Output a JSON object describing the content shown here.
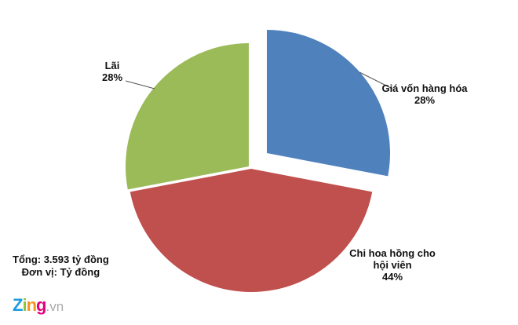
{
  "chart_data": {
    "type": "pie",
    "slices": [
      {
        "label": "Giá vốn hàng hóa",
        "percent_label": "28%",
        "value": 28,
        "color": "#4f81bd",
        "exploded": true
      },
      {
        "label": "Chi hoa hồng cho hội viên",
        "label_lines": [
          "Chi hoa hồng cho",
          "hội viên"
        ],
        "percent_label": "44%",
        "value": 44,
        "color": "#c0504d",
        "exploded": false
      },
      {
        "label": "Lãi",
        "percent_label": "28%",
        "value": 28,
        "color": "#9bbb59",
        "exploded": true
      }
    ],
    "start_angle": "12 o'clock",
    "direction": "clockwise"
  },
  "notes": {
    "total": "Tổng: 3.593 tỷ đồng",
    "unit": "Đơn vị: Tỷ đồng"
  },
  "logo": {
    "text": "Zing",
    "suffix": ".vn",
    "letter_colors": [
      "#1a9be0",
      "#8cc63f",
      "#f7941d",
      "#e6007e"
    ]
  }
}
